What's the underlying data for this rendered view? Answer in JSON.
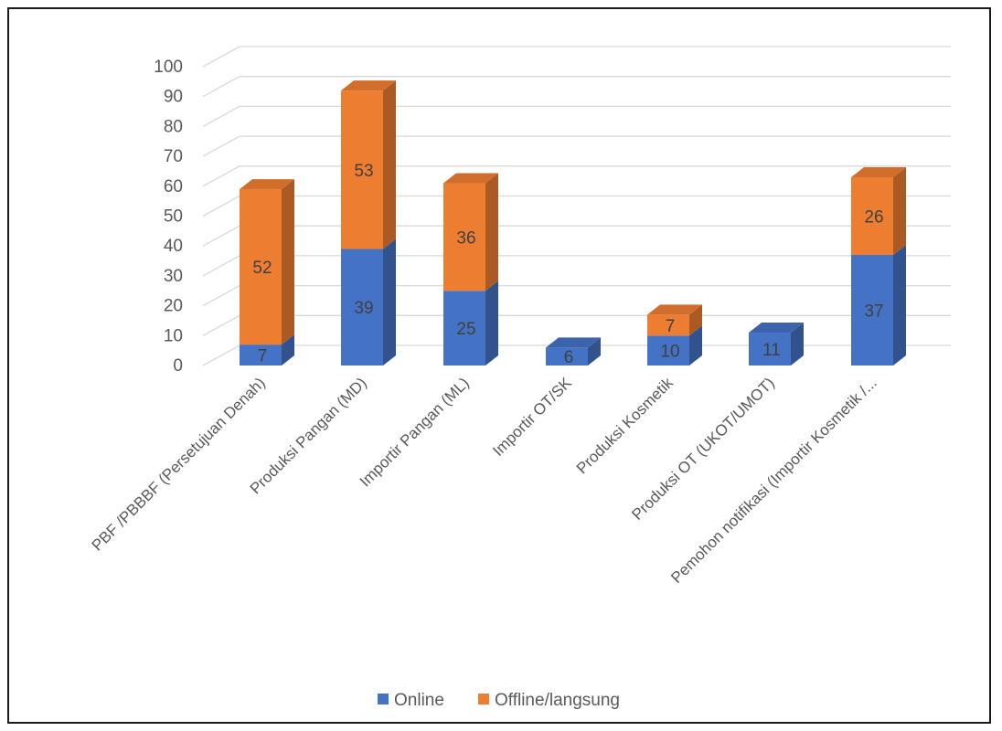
{
  "chart_data": {
    "type": "bar",
    "stacked": true,
    "three_d": true,
    "title": "",
    "xlabel": "",
    "ylabel": "",
    "ylim": [
      0,
      100
    ],
    "yticks": [
      0,
      10,
      20,
      30,
      40,
      50,
      60,
      70,
      80,
      90,
      100
    ],
    "grid": true,
    "legend_position": "bottom",
    "categories": [
      "PBF /PBBBF (Persetujuan Denah)",
      "Produksi Pangan (MD)",
      "Importir Pangan (ML)",
      "Importir OT/SK",
      "Produksi Kosmetik",
      "Produksi OT (UKOT/UMOT)",
      "Pemohon notifikasi (Importir Kosmetik /..."
    ],
    "series": [
      {
        "name": "Online",
        "color": "#4472C4",
        "values": [
          7,
          39,
          25,
          6,
          10,
          11,
          37
        ]
      },
      {
        "name": "Offline/langsung",
        "color": "#ED7D31",
        "values": [
          52,
          53,
          36,
          null,
          7,
          null,
          26
        ]
      }
    ]
  }
}
